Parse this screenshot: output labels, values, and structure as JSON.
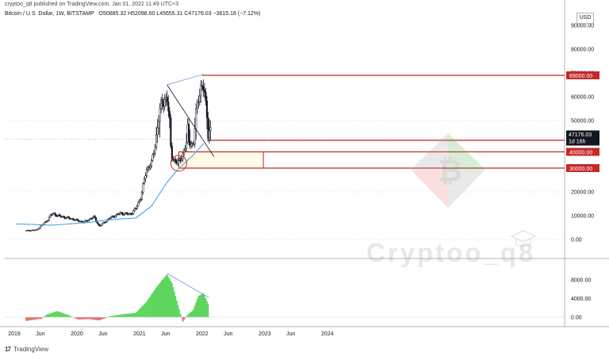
{
  "header": {
    "published": "cryptoo_q8 published on TradingView.com, Jan 01, 2022 11:49 UTC+3",
    "symbol": "Bitcoin / U.S. Dollar, 1W, BITSTAMP",
    "ohlc": "O50885.32  H52098.60  L45655.31  C47176.03  −3615.18 (−7.12%)"
  },
  "footer": {
    "brand": "TradingView"
  },
  "watermark": "Cryptoo_q8",
  "currency": "USD",
  "colors": {
    "candle": "#131722",
    "ma": "#4aa3df",
    "level_border": "#c62828",
    "level_label_bg": "#c62828",
    "last_price_bg": "#131722",
    "zone_fill": "#fffbe6",
    "osc_pos": "#5ed65e",
    "osc_neg": "#e57373",
    "divergence": "#8aaee8"
  },
  "chart_data": [
    {
      "type": "candlestick",
      "title": "",
      "xlabel": "",
      "ylabel": "",
      "x_ticks": [
        "2019",
        "Jun",
        "2020",
        "Jun",
        "2021",
        "Jun",
        "2022",
        "Jun",
        "2023",
        "Jun",
        "2024"
      ],
      "y_ticks": [
        "90000.00",
        "80000.00",
        "70000.00",
        "60000.00",
        "50000.00",
        "40000.00",
        "30000.00",
        "20000.00",
        "10000.00",
        "0.00"
      ],
      "ylim": [
        -3000,
        95000
      ],
      "grid": true,
      "series": [
        {
          "name": "",
          "anchors_close": [
            [
              "2019-01",
              3700
            ],
            [
              "2019-03",
              4000
            ],
            [
              "2019-05",
              8000
            ],
            [
              "2019-06",
              11000
            ],
            [
              "2019-07",
              10000
            ],
            [
              "2019-09",
              9000
            ],
            [
              "2019-10",
              8500
            ],
            [
              "2019-12",
              7200
            ],
            [
              "2020-02",
              9500
            ],
            [
              "2020-03",
              5500
            ],
            [
              "2020-05",
              9000
            ],
            [
              "2020-07",
              11000
            ],
            [
              "2020-09",
              10600
            ],
            [
              "2020-10",
              13000
            ],
            [
              "2020-11",
              18000
            ],
            [
              "2020-12",
              29000
            ],
            [
              "2021-01",
              33000
            ],
            [
              "2021-02",
              48000
            ],
            [
              "2021-03",
              57000
            ],
            [
              "2021-04",
              60000
            ],
            [
              "2021-05",
              36000
            ],
            [
              "2021-06",
              33000
            ],
            [
              "2021-07",
              38000
            ],
            [
              "2021-08",
              48000
            ],
            [
              "2021-09",
              43000
            ],
            [
              "2021-10",
              61000
            ],
            [
              "2021-11",
              64000
            ],
            [
              "2021-12",
              47176
            ]
          ]
        },
        {
          "name": "",
          "type": "line",
          "anchors": [
            [
              "2018-12",
              6500
            ],
            [
              "2019-06",
              6000
            ],
            [
              "2020-01",
              7200
            ],
            [
              "2020-06",
              8500
            ],
            [
              "2020-10",
              9000
            ],
            [
              "2021-01",
              14000
            ],
            [
              "2021-04",
              24000
            ],
            [
              "2021-07",
              32000
            ],
            [
              "2021-09",
              38000
            ],
            [
              "2021-11",
              45000
            ]
          ]
        }
      ],
      "levels": [
        {
          "label": "69000.00",
          "value": 69000
        },
        {
          "label": "47000.00",
          "value": 47000
        },
        {
          "label": "40000.00",
          "value": 40000
        },
        {
          "label": "30000.00",
          "value": 30000
        }
      ],
      "last_price": {
        "value": "47176.03",
        "countdown": "1d 16h"
      },
      "zone": {
        "from": "2021-07",
        "to": "2022-10",
        "top": 40000,
        "bottom": 30000
      },
      "annotations": [
        {
          "type": "divergence_line",
          "from": [
            "2021-04",
            65000
          ],
          "to": [
            "2021-11",
            69500
          ]
        },
        {
          "type": "trend_line",
          "from": [
            "2021-04",
            65000
          ],
          "to": [
            "2022-01",
            37000
          ]
        },
        {
          "type": "circle",
          "at": [
            "2021-07",
            33000
          ]
        }
      ]
    },
    {
      "type": "bar",
      "title": "",
      "y_ticks": [
        "8000.00",
        "4000.00",
        "0.00"
      ],
      "ylim": [
        -1200,
        10000
      ],
      "series": [
        {
          "name": "",
          "anchors": [
            [
              "2019-01",
              -800
            ],
            [
              "2019-04",
              -300
            ],
            [
              "2019-05",
              600
            ],
            [
              "2019-07",
              1300
            ],
            [
              "2019-09",
              500
            ],
            [
              "2019-11",
              -500
            ],
            [
              "2020-01",
              -400
            ],
            [
              "2020-03",
              -700
            ],
            [
              "2020-05",
              200
            ],
            [
              "2020-08",
              700
            ],
            [
              "2020-10",
              900
            ],
            [
              "2020-12",
              3200
            ],
            [
              "2021-02",
              6500
            ],
            [
              "2021-04",
              9200
            ],
            [
              "2021-05",
              7200
            ],
            [
              "2021-06",
              3000
            ],
            [
              "2021-07",
              -1000
            ],
            [
              "2021-08",
              600
            ],
            [
              "2021-09",
              1500
            ],
            [
              "2021-10",
              4500
            ],
            [
              "2021-11",
              5200
            ],
            [
              "2021-12",
              2500
            ]
          ]
        }
      ],
      "annotations": [
        {
          "type": "divergence_line",
          "from": [
            "2021-04",
            9400
          ],
          "to": [
            "2021-12",
            4200
          ]
        }
      ]
    }
  ]
}
